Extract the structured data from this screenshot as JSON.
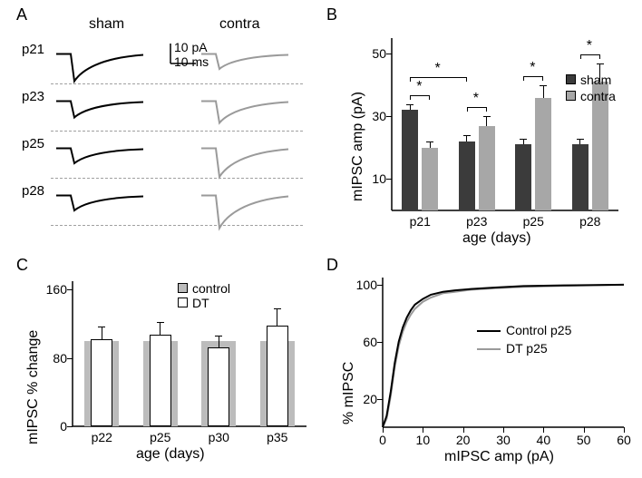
{
  "panelA": {
    "label": "A",
    "header_left": "sham",
    "header_right": "contra",
    "rows": [
      "p21",
      "p23",
      "p25",
      "p28"
    ],
    "scale_y": "10 pA",
    "scale_x": "10 ms",
    "trace_color_sham": "#000000",
    "trace_color_contra": "#9a9a9a",
    "sham_depths": [
      1.0,
      0.6,
      0.55,
      0.55
    ],
    "contra_depths": [
      0.55,
      0.8,
      1.05,
      1.2
    ],
    "dash_color": "#bdbdbd"
  },
  "panelB": {
    "label": "B",
    "ylabel": "mIPSC amp (pA)",
    "xlabel": "age (days)",
    "categories": [
      "p21",
      "p23",
      "p25",
      "p28"
    ],
    "sham_values": [
      32,
      22,
      21,
      21
    ],
    "sham_errs": [
      2,
      2,
      2,
      2
    ],
    "contra_values": [
      20,
      27,
      36,
      41
    ],
    "contra_errs": [
      2,
      3,
      4,
      6
    ],
    "ylim": [
      0,
      55
    ],
    "yticks": [
      10,
      30,
      50
    ],
    "bar_color_sham": "#3b3b3b",
    "bar_color_contra": "#a7a7a7",
    "legend": {
      "sham": "sham",
      "contra": "contra"
    },
    "sig_pairs": [
      {
        "type": "within",
        "cat": 0
      },
      {
        "type": "within",
        "cat": 1
      },
      {
        "type": "within",
        "cat": 2
      },
      {
        "type": "within",
        "cat": 3
      },
      {
        "type": "between",
        "from_cat": 0,
        "to_cat": 1
      }
    ],
    "background": "#ffffff",
    "axis_color": "#000000"
  },
  "panelC": {
    "label": "C",
    "ylabel": "mIPSC % change",
    "xlabel": "age (days)",
    "categories": [
      "p22",
      "p25",
      "p30",
      "p35"
    ],
    "control_values": [
      100,
      100,
      100,
      100
    ],
    "dt_values": [
      102,
      107,
      92,
      118
    ],
    "dt_errs": [
      15,
      15,
      14,
      20
    ],
    "ylim": [
      0,
      170
    ],
    "yticks": [
      0,
      80,
      160
    ],
    "bar_color_control": "#bcbcbc",
    "bar_color_dt_fill": "#ffffff",
    "bar_color_dt_stroke": "#000000",
    "legend": {
      "control": "control",
      "dt": "DT"
    },
    "background": "#ffffff"
  },
  "panelD": {
    "label": "D",
    "ylabel": "% mIPSC",
    "xlabel": "mIPSC amp (pA)",
    "xlim": [
      0,
      60
    ],
    "ylim": [
      0,
      105
    ],
    "xticks": [
      0,
      10,
      20,
      30,
      40,
      50,
      60
    ],
    "yticks": [
      20,
      60,
      100
    ],
    "legend": {
      "control": "Control p25",
      "dt": "DT p25"
    },
    "line_color_control": "#000000",
    "line_color_dt": "#9a9a9a",
    "curve_control_x": [
      0,
      1,
      2,
      3,
      4,
      5,
      6,
      7,
      8,
      10,
      12,
      15,
      18,
      22,
      28,
      35,
      45,
      60
    ],
    "curve_control_y": [
      0,
      8,
      25,
      45,
      60,
      70,
      77,
      82,
      86,
      90,
      93,
      95,
      96,
      97,
      98,
      99,
      99.5,
      100
    ],
    "curve_dt_x": [
      0,
      1,
      2,
      3,
      4,
      5,
      6,
      7,
      8,
      10,
      12,
      15,
      18,
      22,
      28,
      35,
      45,
      60
    ],
    "curve_dt_y": [
      0,
      6,
      22,
      42,
      57,
      67,
      74,
      79,
      83,
      88,
      91,
      94,
      95,
      96.5,
      97.5,
      98.5,
      99.2,
      100
    ],
    "background": "#ffffff"
  }
}
